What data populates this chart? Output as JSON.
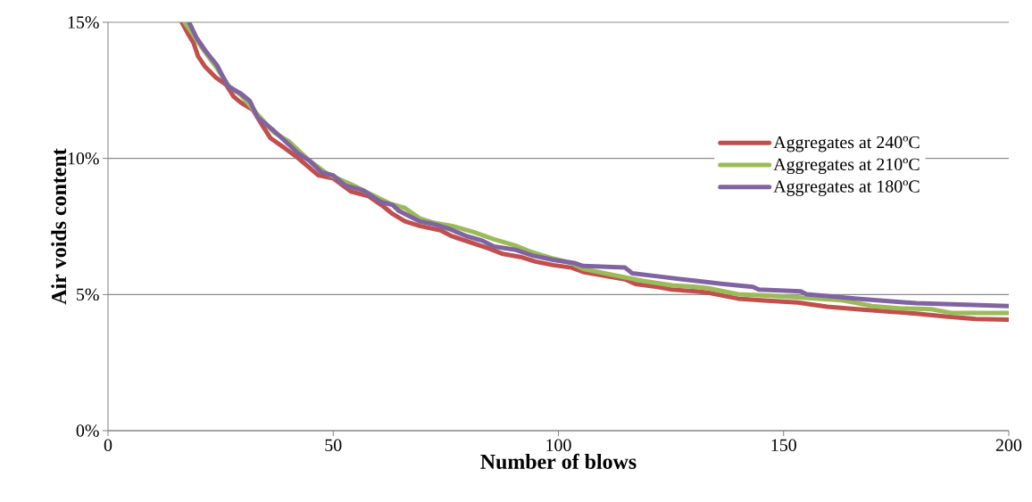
{
  "chart_data": {
    "type": "line",
    "xlabel": "Number of blows",
    "ylabel": "Air voids content",
    "xlim": [
      0,
      200
    ],
    "ylim": [
      0,
      15
    ],
    "xticks": [
      0,
      50,
      100,
      150,
      200
    ],
    "yticks": [
      {
        "value": 0,
        "label": "0%"
      },
      {
        "value": 5,
        "label": "5%"
      },
      {
        "value": 10,
        "label": "10%"
      },
      {
        "value": 15,
        "label": "15%"
      }
    ],
    "grid": "y",
    "legend": "top right",
    "marker": "none",
    "line_style": "solid",
    "series": [
      {
        "name": "Aggregates at 240ºC",
        "color": "#c0504d",
        "x": [
          16.4,
          18.0,
          19.0,
          20.0,
          21.6,
          23.9,
          26.2,
          27.9,
          29.5,
          32.2,
          34.2,
          36.1,
          39.4,
          42.1,
          46.7,
          50.0,
          54.0,
          57.9,
          61.2,
          63.2,
          65.9,
          69.2,
          73.8,
          76.4,
          80.4,
          84.4,
          87.7,
          91.6,
          94.9,
          98.9,
          102.9,
          105.5,
          110.8,
          114.8,
          117.1,
          122.0,
          125.3,
          130.6,
          133.3,
          139.9,
          146.5,
          153.1,
          159.7,
          166.3,
          172.9,
          179.5,
          186.1,
          192.7,
          200
        ],
        "values": [
          15.0,
          14.51,
          14.24,
          13.75,
          13.36,
          12.98,
          12.71,
          12.27,
          12.05,
          11.78,
          11.23,
          10.74,
          10.36,
          10.03,
          9.38,
          9.27,
          8.78,
          8.61,
          8.23,
          7.96,
          7.69,
          7.52,
          7.36,
          7.14,
          6.92,
          6.7,
          6.49,
          6.38,
          6.21,
          6.08,
          5.99,
          5.83,
          5.67,
          5.56,
          5.39,
          5.28,
          5.18,
          5.12,
          5.07,
          4.85,
          4.77,
          4.71,
          4.55,
          4.46,
          4.38,
          4.3,
          4.19,
          4.1,
          4.08
        ]
      },
      {
        "name": "Aggregates at 210ºC",
        "color": "#9bbb59",
        "x": [
          17.0,
          18.6,
          21.3,
          24.2,
          26.9,
          29.5,
          33.5,
          36.8,
          40.1,
          44.7,
          48.7,
          54.0,
          57.9,
          62.6,
          65.9,
          69.2,
          72.5,
          76.4,
          81.1,
          85.7,
          90.3,
          93.6,
          98.9,
          102.9,
          105.5,
          112.1,
          118.7,
          125.3,
          130.6,
          133.3,
          139.9,
          146.5,
          153.1,
          163.0,
          169.6,
          176.2,
          182.8,
          187.5,
          200
        ],
        "values": [
          15.0,
          14.62,
          13.96,
          13.31,
          12.65,
          12.33,
          11.56,
          10.96,
          10.63,
          9.92,
          9.43,
          9.05,
          8.72,
          8.34,
          8.18,
          7.8,
          7.63,
          7.52,
          7.3,
          7.03,
          6.81,
          6.59,
          6.32,
          6.16,
          5.94,
          5.72,
          5.5,
          5.34,
          5.28,
          5.23,
          5.01,
          4.96,
          4.9,
          4.79,
          4.58,
          4.49,
          4.46,
          4.32,
          4.32
        ]
      },
      {
        "name": "Aggregates at 180ºC",
        "color": "#8064a2",
        "x": [
          18.0,
          19.6,
          21.6,
          24.2,
          26.6,
          29.5,
          31.5,
          33.2,
          36.8,
          40.1,
          42.1,
          44.7,
          47.4,
          50.0,
          52.7,
          56.6,
          60.6,
          63.2,
          64.6,
          69.2,
          72.5,
          75.8,
          79.7,
          83.1,
          85.7,
          90.3,
          94.3,
          98.9,
          103.5,
          105.5,
          114.8,
          116.4,
          122.0,
          130.6,
          136.6,
          143.2,
          144.5,
          153.8,
          155.1,
          166.3,
          179.5,
          200
        ],
        "values": [
          15.0,
          14.45,
          13.96,
          13.42,
          12.65,
          12.38,
          12.11,
          11.51,
          11.02,
          10.52,
          10.2,
          9.92,
          9.49,
          9.38,
          9.0,
          8.83,
          8.4,
          8.29,
          8.07,
          7.69,
          7.58,
          7.41,
          7.14,
          6.98,
          6.76,
          6.65,
          6.43,
          6.27,
          6.16,
          6.05,
          5.99,
          5.78,
          5.67,
          5.5,
          5.39,
          5.28,
          5.18,
          5.12,
          5.01,
          4.85,
          4.68,
          4.58
        ]
      }
    ]
  }
}
